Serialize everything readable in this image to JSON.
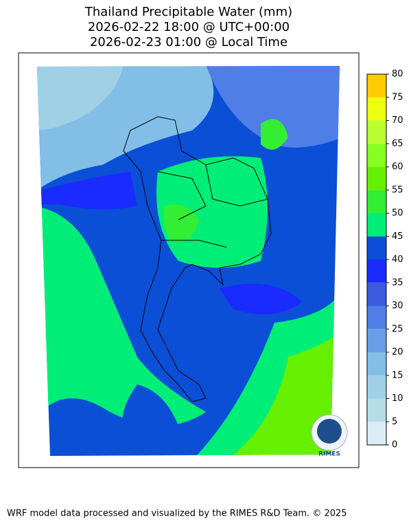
{
  "title": [
    "Thailand Precipitable Water (mm)",
    "2026-02-22 18:00 @ UTC+00:00",
    "2026-02-23 01:00 @ Local Time"
  ],
  "colorbar": {
    "ticks": [
      0,
      5,
      10,
      15,
      20,
      25,
      30,
      35,
      40,
      45,
      50,
      55,
      60,
      65,
      70,
      75,
      80
    ],
    "colors": [
      "#dcecf6",
      "#b5dde6",
      "#9fd0e6",
      "#82bee6",
      "#6a9ee8",
      "#4f7ee6",
      "#3b5bdf",
      "#1a2bff",
      "#0a4fd6",
      "#00ee77",
      "#33ee33",
      "#66f000",
      "#88ff22",
      "#bbff33",
      "#eeff11",
      "#ffcc00"
    ]
  },
  "logo": "RIMES",
  "footer": "WRF model data processed and visualized by the RIMES R&D Team. © 2025"
}
